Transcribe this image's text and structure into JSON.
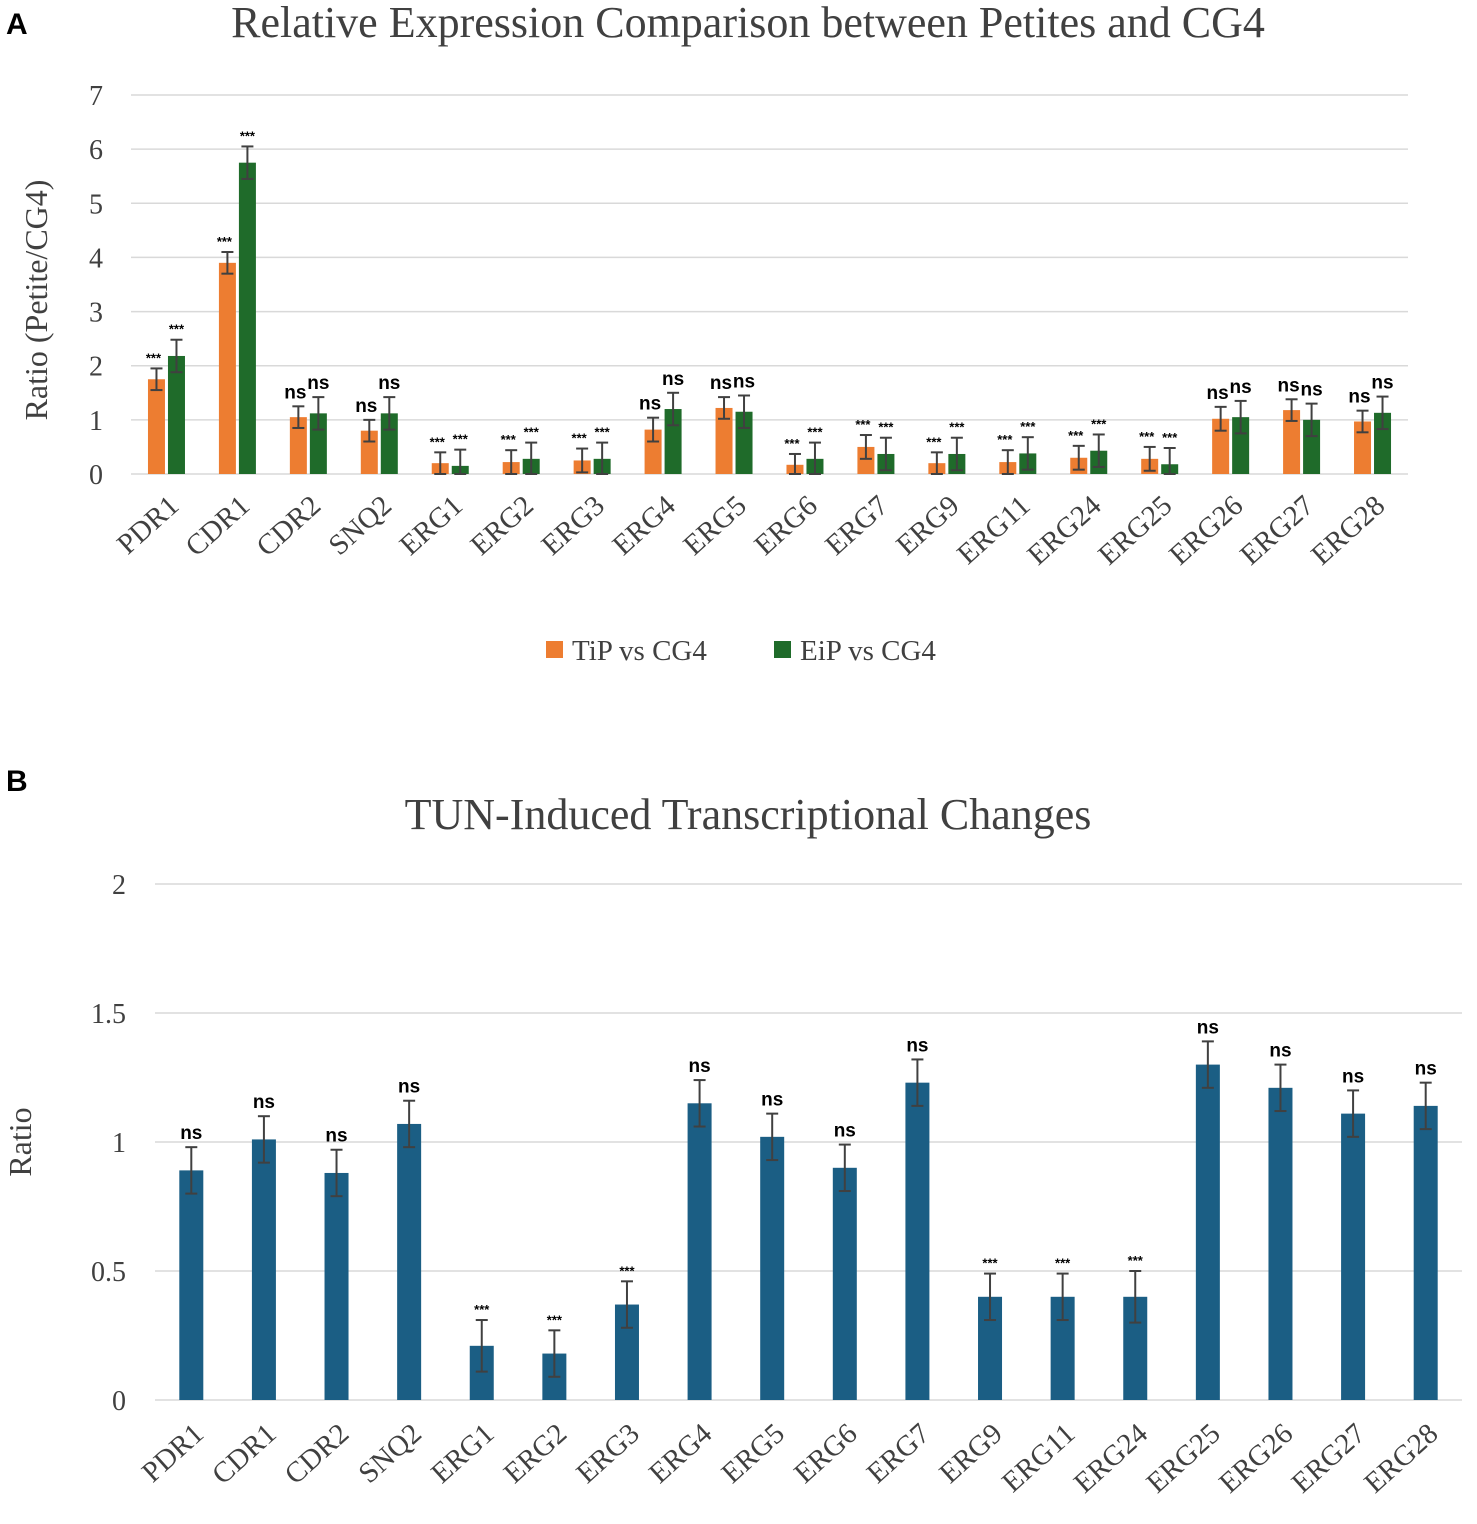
{
  "colors": {
    "tip": "#ed7d31",
    "eip": "#1f6b2a",
    "tun": "#1b5e84"
  },
  "chart_data": [
    {
      "panel": "A",
      "type": "bar",
      "title": "Relative Expression Comparison between Petites and CG4",
      "xlabel": "",
      "ylabel": "Ratio (Petite/CG4)",
      "ylim": [
        0,
        7
      ],
      "yticks": [
        "0",
        "1",
        "2",
        "3",
        "4",
        "5",
        "6",
        "7"
      ],
      "categories": [
        "PDR1",
        "CDR1",
        "CDR2",
        "SNQ2",
        "ERG1",
        "ERG2",
        "ERG3",
        "ERG4",
        "ERG5",
        "ERG6",
        "ERG7",
        "ERG9",
        "ERG11",
        "ERG24",
        "ERG25",
        "ERG26",
        "ERG27",
        "ERG28"
      ],
      "legend_position": "bottom",
      "series": [
        {
          "name": "TiP vs CG4",
          "color_key": "tip",
          "values": [
            1.75,
            3.9,
            1.05,
            0.8,
            0.2,
            0.22,
            0.25,
            0.82,
            1.22,
            0.17,
            0.5,
            0.2,
            0.22,
            0.3,
            0.28,
            1.02,
            1.18,
            0.97
          ],
          "errors": [
            0.2,
            0.2,
            0.2,
            0.2,
            0.2,
            0.22,
            0.22,
            0.22,
            0.2,
            0.2,
            0.22,
            0.2,
            0.22,
            0.22,
            0.22,
            0.22,
            0.2,
            0.2
          ],
          "significance": [
            "***",
            "***",
            "ns",
            "ns",
            "***",
            "***",
            "***",
            "ns",
            "ns",
            "***",
            "***",
            "***",
            "***",
            "***",
            "***",
            "ns",
            "ns",
            "ns"
          ]
        },
        {
          "name": "EiP vs CG4",
          "color_key": "eip",
          "values": [
            2.18,
            5.75,
            1.12,
            1.12,
            0.15,
            0.28,
            0.28,
            1.2,
            1.15,
            0.28,
            0.37,
            0.37,
            0.38,
            0.43,
            0.18,
            1.05,
            1.0,
            1.13
          ],
          "errors": [
            0.3,
            0.3,
            0.3,
            0.3,
            0.3,
            0.3,
            0.3,
            0.3,
            0.3,
            0.3,
            0.3,
            0.3,
            0.3,
            0.3,
            0.3,
            0.3,
            0.3,
            0.3
          ],
          "significance": [
            "***",
            "***",
            "ns",
            "ns",
            "***",
            "***",
            "***",
            "ns",
            "ns",
            "***",
            "***",
            "***",
            "***",
            "***",
            "***",
            "ns",
            "ns",
            "ns"
          ]
        }
      ]
    },
    {
      "panel": "B",
      "type": "bar",
      "title": "TUN-Induced Transcriptional Changes",
      "xlabel": "",
      "ylabel": "Ratio",
      "ylim": [
        0,
        2
      ],
      "yticks": [
        "0",
        "0.5",
        "1",
        "1.5",
        "2"
      ],
      "categories": [
        "PDR1",
        "CDR1",
        "CDR2",
        "SNQ2",
        "ERG1",
        "ERG2",
        "ERG3",
        "ERG4",
        "ERG5",
        "ERG6",
        "ERG7",
        "ERG9",
        "ERG11",
        "ERG24",
        "ERG25",
        "ERG26",
        "ERG27",
        "ERG28"
      ],
      "series": [
        {
          "name": "TUN",
          "color_key": "tun",
          "values": [
            0.89,
            1.01,
            0.88,
            1.07,
            0.21,
            0.18,
            0.37,
            1.15,
            1.02,
            0.9,
            1.23,
            0.4,
            0.4,
            0.4,
            1.3,
            1.21,
            1.11,
            1.14
          ],
          "errors": [
            0.09,
            0.09,
            0.09,
            0.09,
            0.1,
            0.09,
            0.09,
            0.09,
            0.09,
            0.09,
            0.09,
            0.09,
            0.09,
            0.1,
            0.09,
            0.09,
            0.09,
            0.09
          ],
          "significance": [
            "ns",
            "ns",
            "ns",
            "ns",
            "***",
            "***",
            "***",
            "ns",
            "ns",
            "ns",
            "ns",
            "***",
            "***",
            "***",
            "ns",
            "ns",
            "ns",
            "ns"
          ]
        }
      ]
    }
  ]
}
